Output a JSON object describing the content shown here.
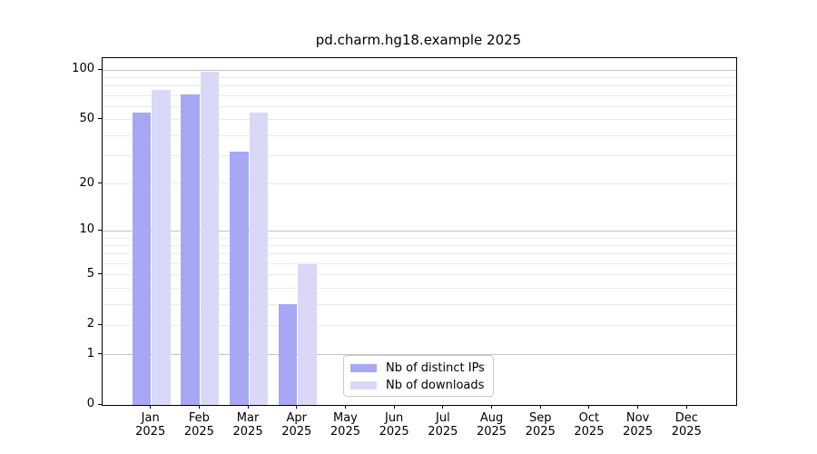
{
  "chart_data": {
    "type": "bar",
    "title": "pd.charm.hg18.example 2025",
    "categories": [
      "Jan 2025",
      "Feb 2025",
      "Mar 2025",
      "Apr 2025",
      "May 2025",
      "Jun 2025",
      "Jul 2025",
      "Aug 2025",
      "Sep 2025",
      "Oct 2025",
      "Nov 2025",
      "Dec 2025"
    ],
    "series": [
      {
        "name": "Nb of distinct IPs",
        "color": "#a7a7f3",
        "values": [
          55,
          71,
          32,
          3,
          0,
          0,
          0,
          0,
          0,
          0,
          0,
          0
        ]
      },
      {
        "name": "Nb of downloads",
        "color": "#d9d9f7",
        "values": [
          76,
          98,
          55,
          6,
          0,
          0,
          0,
          0,
          0,
          0,
          0,
          0
        ]
      }
    ],
    "xlabel": "",
    "ylabel": "",
    "y_ticks": [
      0,
      1,
      2,
      5,
      10,
      20,
      50,
      100
    ],
    "y_scale": "log10(value+1)",
    "ylim": [
      0,
      118
    ],
    "grid": "horizontal, minor lines faint, darker lines at 1/10/100",
    "legend_position": "inside lower-center"
  },
  "colors": {
    "major_gridline": "#c4c4c4",
    "minor_gridline": "#eaeaea",
    "legend_border": "#cccccc",
    "axis": "#000000",
    "background": "#ffffff"
  }
}
